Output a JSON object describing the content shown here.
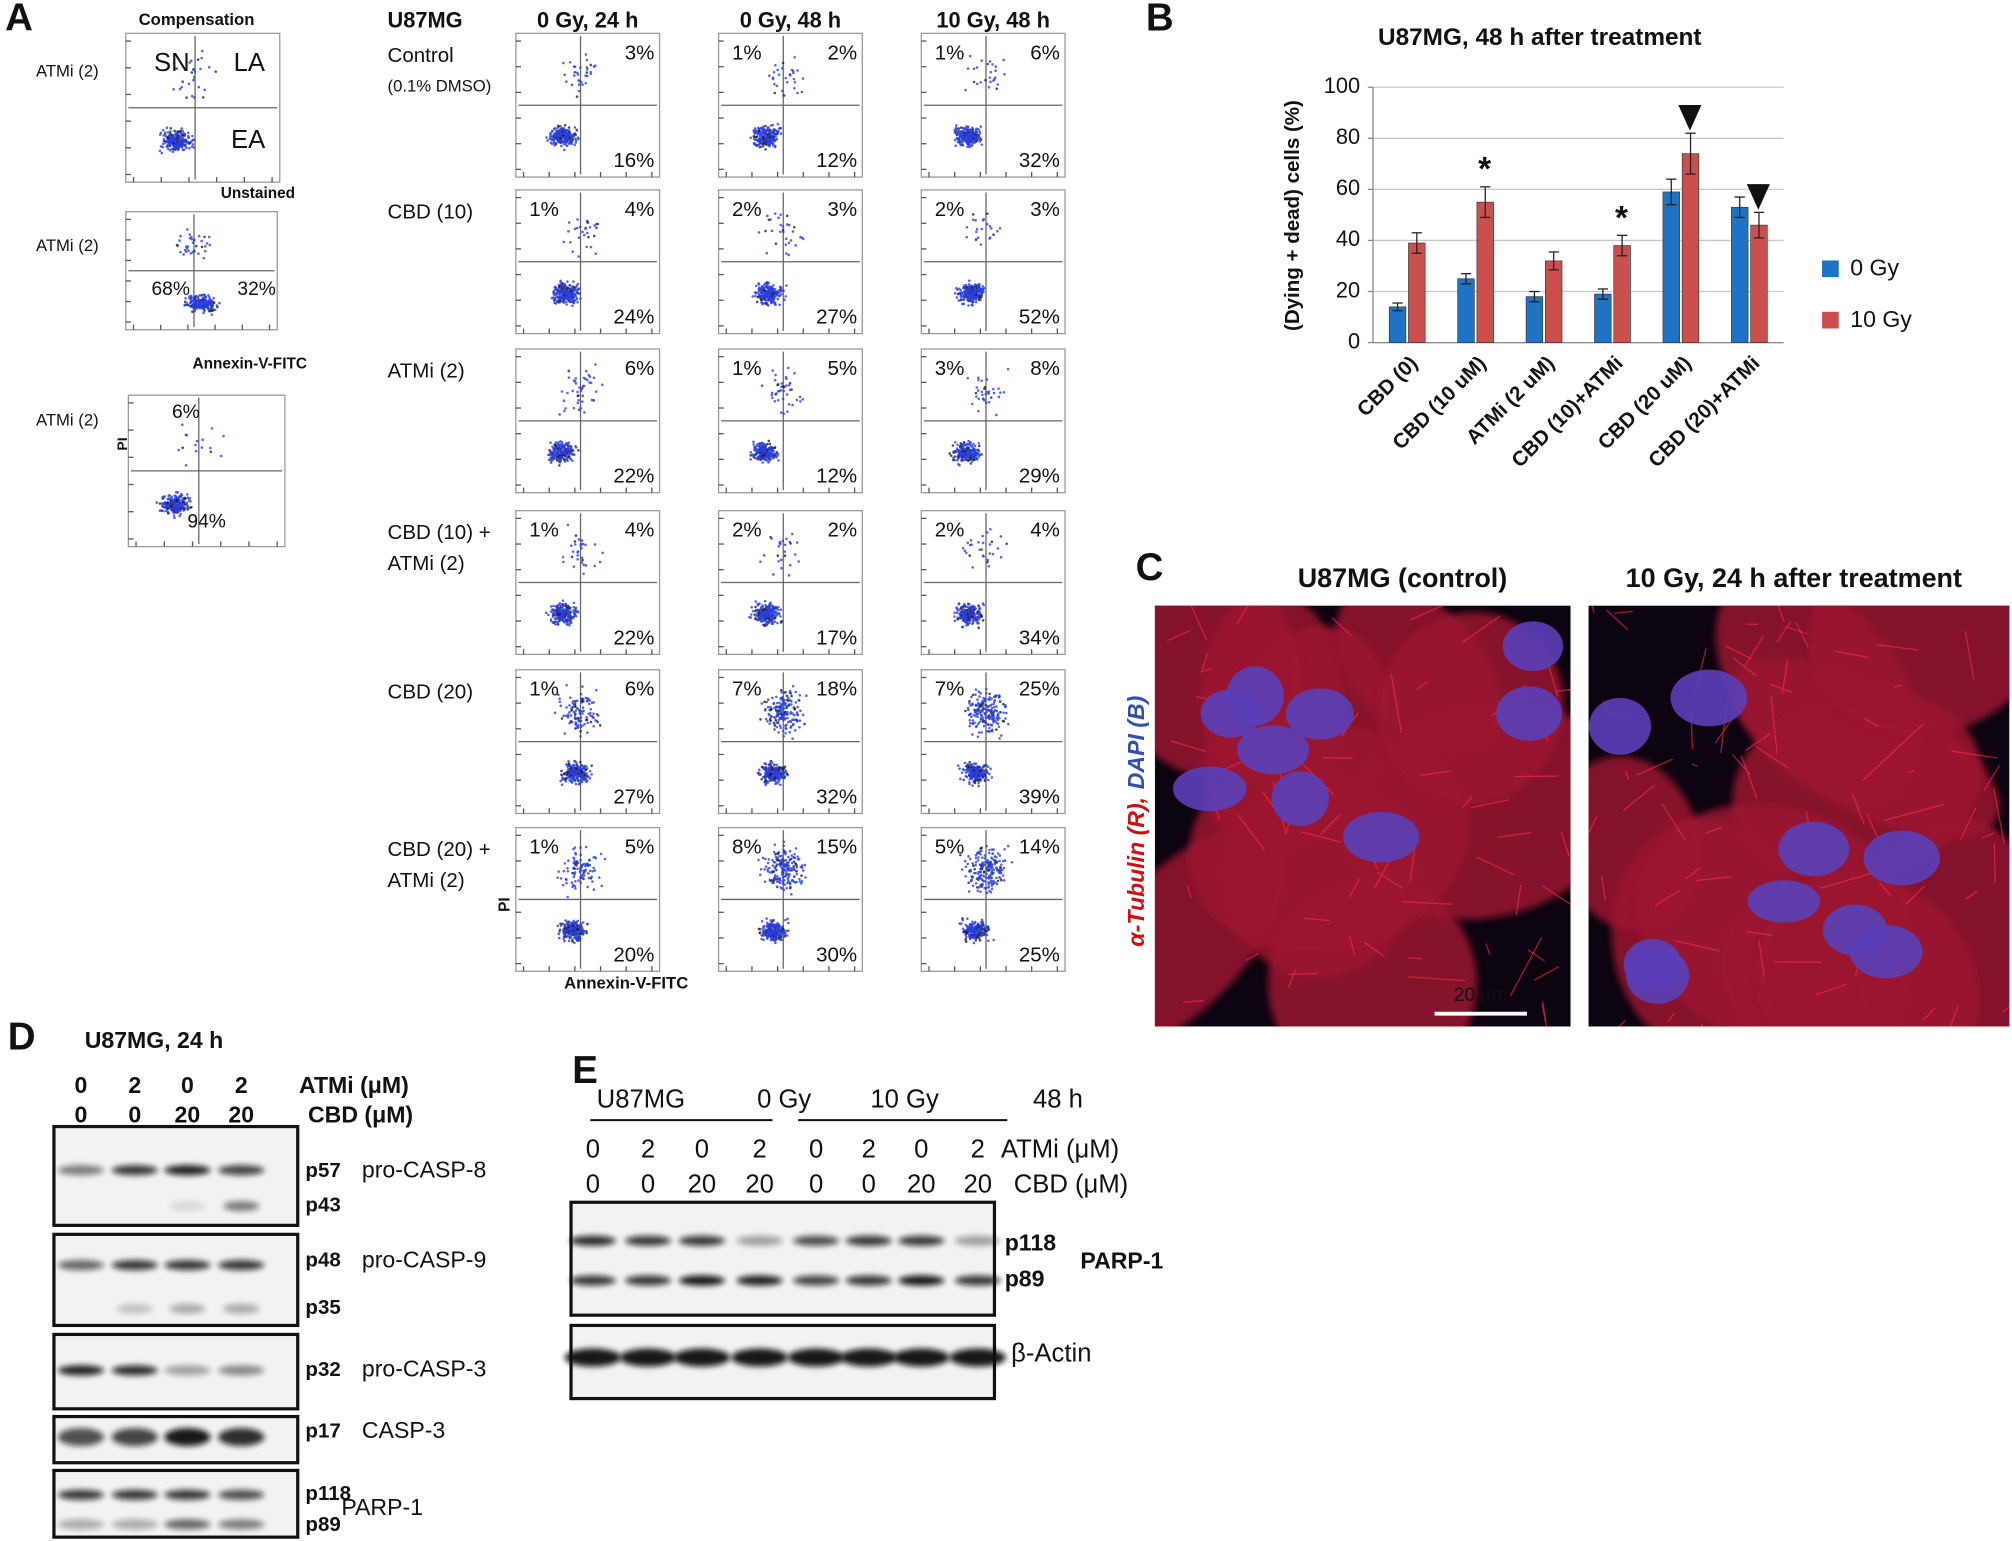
{
  "panel_a": {
    "letter": "A",
    "compensation": {
      "title": "Compensation",
      "plots": [
        {
          "side": "ATMi (2)",
          "quadrants": [
            "SN",
            "LA",
            "EA"
          ],
          "caption": "Unstained"
        },
        {
          "side": "ATMi (2)",
          "left": "68%",
          "right": "32%",
          "caption": "Annexin-V-FITC"
        },
        {
          "side": "ATMi (2)",
          "y_label": "PI",
          "top": "6%",
          "bottom": "94%"
        }
      ]
    },
    "cell_line": "U87MG",
    "columns": [
      "0 Gy, 24 h",
      "0 Gy, 48 h",
      "10 Gy, 48 h"
    ],
    "rows": [
      {
        "label": [
          "Control",
          "(0.1% DMSO)"
        ],
        "plots": [
          {
            "ur": "3%",
            "lr": "16%"
          },
          {
            "ul": "1%",
            "ur": "2%",
            "lr": "12%"
          },
          {
            "ul": "1%",
            "ur": "6%",
            "lr": "32%"
          }
        ]
      },
      {
        "label": [
          "CBD (10)"
        ],
        "plots": [
          {
            "ul": "1%",
            "ur": "4%",
            "lr": "24%"
          },
          {
            "ul": "2%",
            "ur": "3%",
            "lr": "27%"
          },
          {
            "ul": "2%",
            "ur": "3%",
            "lr": "52%"
          }
        ]
      },
      {
        "label": [
          "ATMi (2)"
        ],
        "plots": [
          {
            "ur": "6%",
            "lr": "22%"
          },
          {
            "ul": "1%",
            "ur": "5%",
            "lr": "12%"
          },
          {
            "ul": "3%",
            "ur": "8%",
            "lr": "29%"
          }
        ]
      },
      {
        "label": [
          "CBD (10) +",
          "ATMi (2)"
        ],
        "plots": [
          {
            "ul": "1%",
            "ur": "4%",
            "lr": "22%"
          },
          {
            "ul": "2%",
            "ur": "2%",
            "lr": "17%"
          },
          {
            "ul": "2%",
            "ur": "4%",
            "lr": "34%"
          }
        ]
      },
      {
        "label": [
          "CBD (20)"
        ],
        "plots": [
          {
            "ul": "1%",
            "ur": "6%",
            "lr": "27%"
          },
          {
            "ul": "7%",
            "ur": "18%",
            "lr": "32%"
          },
          {
            "ul": "7%",
            "ur": "25%",
            "lr": "39%"
          }
        ]
      },
      {
        "label": [
          "CBD (20) +",
          "ATMi (2)"
        ],
        "plots": [
          {
            "ul": "1%",
            "ur": "5%",
            "lr": "20%"
          },
          {
            "ul": "8%",
            "ur": "15%",
            "lr": "30%"
          },
          {
            "ul": "5%",
            "ur": "14%",
            "lr": "25%"
          }
        ]
      }
    ],
    "y_label": "PI",
    "x_label": "Annexin-V-FITC"
  },
  "panel_b": {
    "letter": "B"
  },
  "chart_data": {
    "type": "bar",
    "title": "U87MG, 48 h after treatment",
    "y_label": "(Dying + dead) cells (%)",
    "categories": [
      "CBD (0)",
      "CBD (10 uM)",
      "ATMi (2 uM)",
      "CBD (10)+ATMi",
      "CBD (20 uM)",
      "CBD (20)+ATMi"
    ],
    "series": [
      {
        "name": "0 Gy",
        "color": "#1f72c4",
        "values": [
          14,
          25,
          18,
          19,
          59,
          53
        ],
        "errors": [
          1.5,
          2,
          2,
          2,
          5,
          4
        ]
      },
      {
        "name": "10 Gy",
        "color": "#c9504d",
        "values": [
          39,
          55,
          32,
          38,
          74,
          46
        ],
        "errors": [
          4,
          6,
          3.5,
          4,
          8,
          5
        ]
      }
    ],
    "annotations": [
      {
        "text": "*",
        "category": "CBD (10 uM)"
      },
      {
        "text": "*",
        "category": "CBD (10)+ATMi"
      }
    ],
    "ylim": [
      0,
      100
    ],
    "yticks": [
      0,
      20,
      40,
      60,
      80,
      100
    ],
    "grid": true,
    "legend": "right"
  },
  "panel_c": {
    "letter": "C",
    "titles": [
      "U87MG (control)",
      "10 Gy, 24 h after treatment"
    ],
    "stain_red": "α-Tubulin (R),",
    "stain_blue": "DAPI (B)",
    "scale_bar": "20 µm"
  },
  "panel_d": {
    "letter": "D",
    "title": "U87MG,  24 h",
    "atmi": {
      "label": "ATMi (μM)",
      "lanes": [
        0,
        2,
        0,
        2
      ]
    },
    "cbd": {
      "label": "CBD (μM)",
      "lanes": [
        0,
        0,
        20,
        20
      ]
    },
    "blots": [
      {
        "bands": [
          "p57",
          "p43"
        ],
        "name": "pro-CASP-8"
      },
      {
        "bands": [
          "p48",
          "p35"
        ],
        "name": "pro-CASP-9"
      },
      {
        "bands": [
          "p32"
        ],
        "name": "pro-CASP-3"
      },
      {
        "bands": [
          "p17"
        ],
        "name": "CASP-3"
      },
      {
        "bands": [
          "p118",
          "p89"
        ],
        "name": "PARP-1"
      }
    ]
  },
  "panel_e": {
    "letter": "E",
    "cell_line": "U87MG",
    "groups": [
      "0 Gy",
      "10 Gy"
    ],
    "time": "48 h",
    "atmi": {
      "label": "ATMi (μM)",
      "lanes": [
        0,
        2,
        0,
        2,
        0,
        2,
        0,
        2
      ]
    },
    "cbd": {
      "label": "CBD (μM)",
      "lanes": [
        0,
        0,
        20,
        20,
        0,
        0,
        20,
        20
      ]
    },
    "blots": [
      {
        "bands": [
          "p118",
          "p89"
        ],
        "name": "PARP-1"
      },
      {
        "name": "β-Actin"
      }
    ]
  }
}
